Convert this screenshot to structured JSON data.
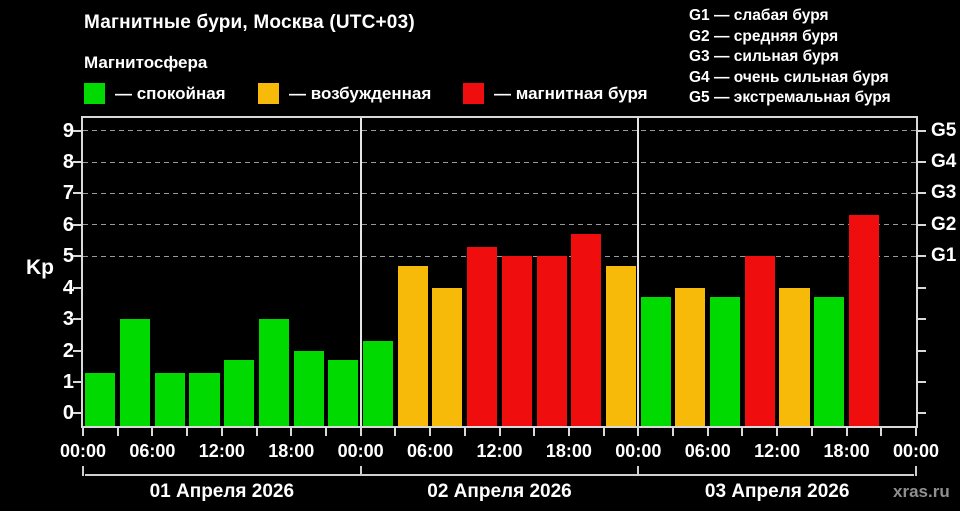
{
  "title": "Магнитные бури, Москва (UTC+03)",
  "subtitle": "Магнитосфера",
  "watermark": "xras.ru",
  "colors": {
    "quiet": "#00da00",
    "excited": "#f8ba08",
    "storm": "#f00d0d",
    "background": "#000000",
    "axis": "#d9d9d9",
    "grid": "#9a9a9a",
    "text": "#ffffff",
    "watermark_text": "#8f8f8f"
  },
  "magnetosphere_legend": [
    {
      "state": "quiet",
      "label": "— спокойная"
    },
    {
      "state": "excited",
      "label": "— возбужденная"
    },
    {
      "state": "storm",
      "label": "— магнитная буря"
    }
  ],
  "storm_scale_legend": [
    "G1 — слабая буря",
    "G2 — средняя буря",
    "G3 — сильная буря",
    "G4 — очень сильная буря",
    "G5 — экстремальная буря"
  ],
  "chart_data": {
    "type": "bar",
    "title": "Магнитные бури, Москва (UTC+03)",
    "ylabel": "Kp",
    "ylim": [
      -0.4,
      9.4
    ],
    "yticks": [
      0,
      1,
      2,
      3,
      4,
      5,
      6,
      7,
      8,
      9
    ],
    "gridlines_at_kp": [
      5,
      6,
      7,
      8,
      9
    ],
    "right_axis_labels": [
      {
        "kp": 5,
        "label": "G1"
      },
      {
        "kp": 6,
        "label": "G2"
      },
      {
        "kp": 7,
        "label": "G3"
      },
      {
        "kp": 8,
        "label": "G4"
      },
      {
        "kp": 9,
        "label": "G5"
      }
    ],
    "hours_per_bar": 3,
    "time_tick_labels": [
      "00:00",
      "06:00",
      "12:00",
      "18:00",
      "00:00",
      "06:00",
      "12:00",
      "18:00",
      "00:00",
      "06:00",
      "12:00",
      "18:00",
      "00:00"
    ],
    "legend_position": "top",
    "grid": "dashed horizontal at storm levels only",
    "days": [
      {
        "date": "01 Апреля 2026",
        "bars": [
          {
            "kp": 1.3,
            "state": "quiet"
          },
          {
            "kp": 3.0,
            "state": "quiet"
          },
          {
            "kp": 1.3,
            "state": "quiet"
          },
          {
            "kp": 1.3,
            "state": "quiet"
          },
          {
            "kp": 1.7,
            "state": "quiet"
          },
          {
            "kp": 3.0,
            "state": "quiet"
          },
          {
            "kp": 2.0,
            "state": "quiet"
          },
          {
            "kp": 1.7,
            "state": "quiet"
          }
        ]
      },
      {
        "date": "02 Апреля 2026",
        "bars": [
          {
            "kp": 2.3,
            "state": "quiet"
          },
          {
            "kp": 4.7,
            "state": "excited"
          },
          {
            "kp": 4.0,
            "state": "excited"
          },
          {
            "kp": 5.3,
            "state": "storm"
          },
          {
            "kp": 5.0,
            "state": "storm"
          },
          {
            "kp": 5.0,
            "state": "storm"
          },
          {
            "kp": 5.7,
            "state": "storm"
          },
          {
            "kp": 4.7,
            "state": "excited"
          }
        ]
      },
      {
        "date": "03 Апреля 2026",
        "bars": [
          {
            "kp": 3.7,
            "state": "quiet"
          },
          {
            "kp": 4.0,
            "state": "excited"
          },
          {
            "kp": 3.7,
            "state": "quiet"
          },
          {
            "kp": 5.0,
            "state": "storm"
          },
          {
            "kp": 4.0,
            "state": "excited"
          },
          {
            "kp": 3.7,
            "state": "quiet"
          },
          {
            "kp": 6.3,
            "state": "storm"
          },
          null
        ]
      }
    ]
  }
}
